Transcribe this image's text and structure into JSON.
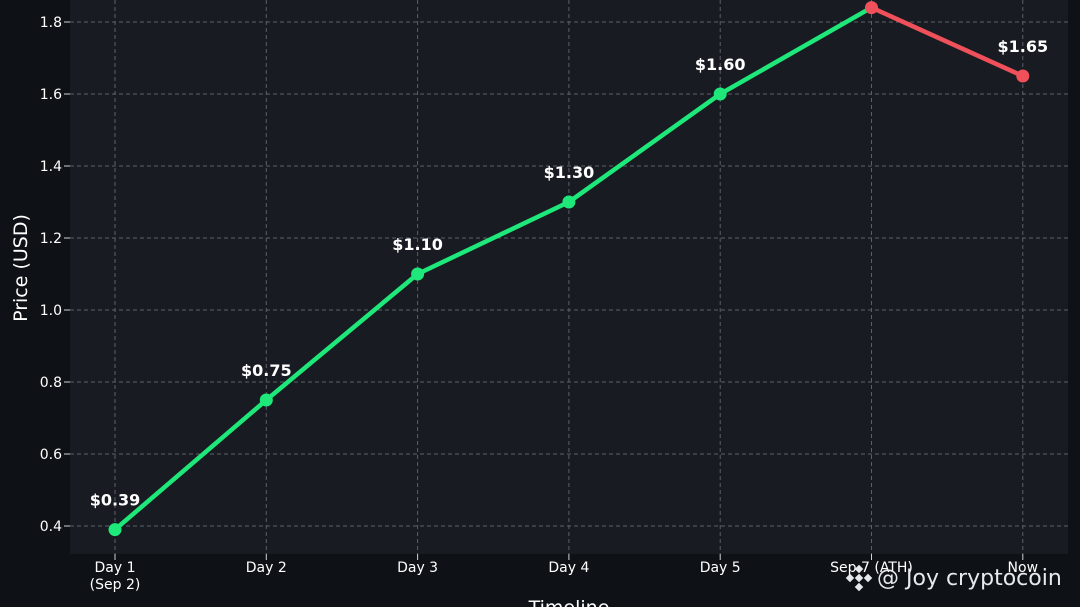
{
  "chart_data": {
    "type": "line",
    "title": "",
    "xlabel": "Timeline",
    "ylabel": "Price (USD)",
    "ylim": [
      0.35,
      1.85
    ],
    "yticks": [
      "0.4",
      "0.6",
      "0.8",
      "1.0",
      "1.2",
      "1.4",
      "1.6",
      "1.8"
    ],
    "categories": [
      "Day 1\n(Sep 2)",
      "Day 2",
      "Day 3",
      "Day 4",
      "Day 5",
      "Sep 7 (ATH)",
      "Now"
    ],
    "values": [
      0.39,
      0.75,
      1.1,
      1.3,
      1.6,
      1.84,
      1.65
    ],
    "data_labels": [
      "$0.39",
      "$0.75",
      "$1.10",
      "$1.30",
      "$1.60",
      "",
      "$1.65"
    ],
    "grid": true,
    "colors": {
      "rise": "#1ee87a",
      "fall": "#f0505a",
      "plot_bg": "#181c22",
      "page_bg": "#0e1116",
      "grid": "#5b6068",
      "text": "#ffffff"
    }
  },
  "watermark": {
    "text": "@ Joy cryptocoin",
    "icon": "binance-logo-icon"
  }
}
